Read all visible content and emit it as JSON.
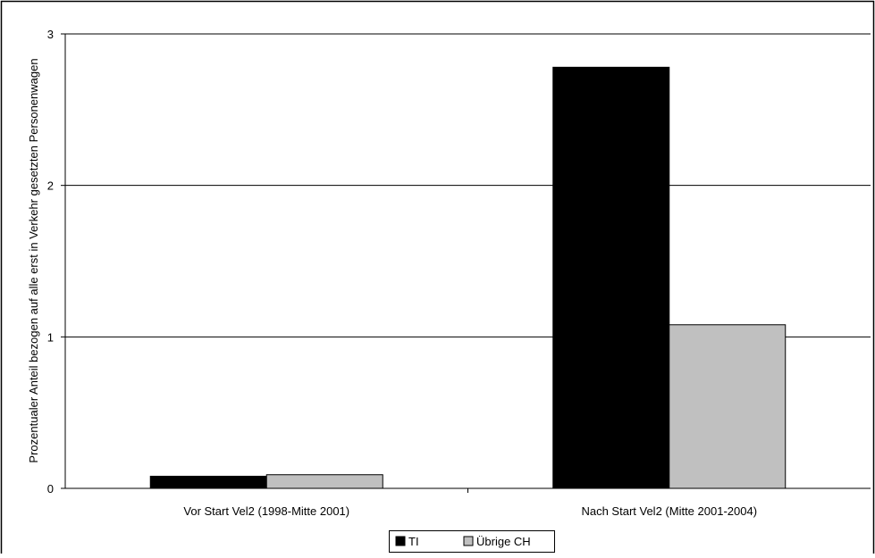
{
  "chart_data": {
    "type": "bar",
    "title": "",
    "xlabel": "",
    "ylabel": "Prozentualer Anteil bezogen auf alle erst in Verkehr gesetzten Personenwagen",
    "ylim": [
      0,
      3
    ],
    "yticks": [
      "0",
      "1",
      "2",
      "3"
    ],
    "grid": true,
    "legend_position": "bottom",
    "categories": [
      "Vor Start Vel2 (1998-Mitte 2001)",
      "Nach Start Vel2 (Mitte 2001-2004)"
    ],
    "series": [
      {
        "name": "TI",
        "values": [
          0.08,
          2.78
        ],
        "color": "#000000"
      },
      {
        "name": "Übrige CH",
        "values": [
          0.09,
          1.08
        ],
        "color": "#c0c0c0"
      }
    ]
  }
}
